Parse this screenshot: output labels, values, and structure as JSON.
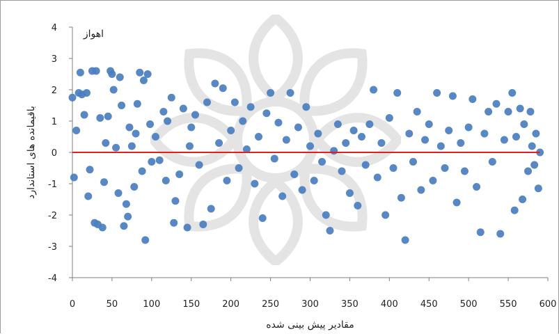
{
  "chart_data": {
    "type": "scatter",
    "title": "",
    "panel_label": "اهواز",
    "xlabel": "مقادیر پیش بینی شده",
    "ylabel": "باقیمانده های استاندارد",
    "xlim": [
      0,
      600
    ],
    "ylim": [
      -4,
      4
    ],
    "x_ticks": [
      "0",
      "50",
      "100",
      "150",
      "200",
      "250",
      "300",
      "350",
      "400",
      "450",
      "500",
      "550",
      "600"
    ],
    "y_ticks": [
      "4",
      "3",
      "2",
      "1",
      "0",
      "-1",
      "-2",
      "-3",
      "-4"
    ],
    "grid": false,
    "legend": "none",
    "reference_line": {
      "y": 0,
      "color": "#e02020"
    },
    "point_color": "#4a7ebf",
    "series": [
      {
        "points": [
          [
            0,
            1.75
          ],
          [
            2,
            -0.8
          ],
          [
            5,
            0.7
          ],
          [
            8,
            1.9
          ],
          [
            10,
            2.55
          ],
          [
            12,
            1.85
          ],
          [
            15,
            1.2
          ],
          [
            18,
            1.9
          ],
          [
            20,
            -1.4
          ],
          [
            22,
            -0.55
          ],
          [
            25,
            2.6
          ],
          [
            28,
            -2.25
          ],
          [
            30,
            2.6
          ],
          [
            32,
            -2.3
          ],
          [
            35,
            1.1
          ],
          [
            38,
            -2.4
          ],
          [
            40,
            -0.95
          ],
          [
            42,
            0.3
          ],
          [
            45,
            1.15
          ],
          [
            48,
            2.6
          ],
          [
            50,
            2.5
          ],
          [
            52,
            2.0
          ],
          [
            55,
            0.15
          ],
          [
            58,
            -1.3
          ],
          [
            60,
            2.4
          ],
          [
            62,
            1.5
          ],
          [
            65,
            -2.35
          ],
          [
            68,
            -1.65
          ],
          [
            70,
            -2.05
          ],
          [
            72,
            0.8
          ],
          [
            75,
            0.2
          ],
          [
            78,
            -1.1
          ],
          [
            80,
            0.6
          ],
          [
            82,
            1.55
          ],
          [
            85,
            2.55
          ],
          [
            88,
            -0.6
          ],
          [
            90,
            2.3
          ],
          [
            92,
            -2.8
          ],
          [
            95,
            2.5
          ],
          [
            98,
            0.9
          ],
          [
            100,
            -0.3
          ],
          [
            105,
            0.5
          ],
          [
            110,
            -0.25
          ],
          [
            115,
            1.3
          ],
          [
            118,
            -0.9
          ],
          [
            120,
            1.0
          ],
          [
            125,
            1.75
          ],
          [
            128,
            -2.25
          ],
          [
            130,
            -1.55
          ],
          [
            135,
            -0.7
          ],
          [
            140,
            1.4
          ],
          [
            145,
            -2.4
          ],
          [
            148,
            0.2
          ],
          [
            150,
            0.8
          ],
          [
            155,
            1.2
          ],
          [
            160,
            -0.4
          ],
          [
            165,
            -2.3
          ],
          [
            170,
            1.6
          ],
          [
            175,
            -1.8
          ],
          [
            180,
            2.2
          ],
          [
            185,
            0.3
          ],
          [
            190,
            2.05
          ],
          [
            195,
            -0.9
          ],
          [
            200,
            0.7
          ],
          [
            205,
            1.6
          ],
          [
            210,
            -0.5
          ],
          [
            215,
            1.0
          ],
          [
            220,
            0.1
          ],
          [
            225,
            1.45
          ],
          [
            230,
            -1.0
          ],
          [
            235,
            0.5
          ],
          [
            240,
            -2.1
          ],
          [
            245,
            1.25
          ],
          [
            250,
            1.9
          ],
          [
            255,
            -0.2
          ],
          [
            260,
            0.95
          ],
          [
            265,
            -1.4
          ],
          [
            270,
            0.4
          ],
          [
            275,
            1.9
          ],
          [
            280,
            -0.7
          ],
          [
            285,
            0.8
          ],
          [
            290,
            -1.2
          ],
          [
            295,
            1.45
          ],
          [
            300,
            0.2
          ],
          [
            305,
            -0.9
          ],
          [
            310,
            0.6
          ],
          [
            315,
            -0.3
          ],
          [
            320,
            -2.0
          ],
          [
            325,
            -2.5
          ],
          [
            330,
            0.05
          ],
          [
            335,
            0.9
          ],
          [
            340,
            -0.6
          ],
          [
            345,
            0.3
          ],
          [
            350,
            -1.3
          ],
          [
            355,
            0.7
          ],
          [
            360,
            -1.7
          ],
          [
            365,
            0.5
          ],
          [
            370,
            -0.4
          ],
          [
            375,
            0.9
          ],
          [
            380,
            2.0
          ],
          [
            385,
            -0.8
          ],
          [
            390,
            0.3
          ],
          [
            395,
            -2.0
          ],
          [
            400,
            1.1
          ],
          [
            405,
            -0.5
          ],
          [
            410,
            1.9
          ],
          [
            415,
            -1.45
          ],
          [
            420,
            -2.8
          ],
          [
            425,
            0.6
          ],
          [
            430,
            -0.3
          ],
          [
            435,
            1.3
          ],
          [
            440,
            -1.2
          ],
          [
            445,
            0.4
          ],
          [
            450,
            0.9
          ],
          [
            455,
            -0.9
          ],
          [
            460,
            1.9
          ],
          [
            465,
            0.2
          ],
          [
            470,
            -0.5
          ],
          [
            475,
            0.7
          ],
          [
            480,
            1.8
          ],
          [
            485,
            -1.6
          ],
          [
            490,
            0.3
          ],
          [
            495,
            -0.6
          ],
          [
            500,
            0.8
          ],
          [
            505,
            1.7
          ],
          [
            510,
            -1.1
          ],
          [
            515,
            -2.55
          ],
          [
            520,
            0.6
          ],
          [
            525,
            1.3
          ],
          [
            530,
            -0.3
          ],
          [
            535,
            1.55
          ],
          [
            540,
            -2.6
          ],
          [
            545,
            0.4
          ],
          [
            550,
            1.3
          ],
          [
            555,
            1.9
          ],
          [
            558,
            -1.85
          ],
          [
            560,
            0.5
          ],
          [
            565,
            1.4
          ],
          [
            568,
            -1.5
          ],
          [
            570,
            0.9
          ],
          [
            575,
            -0.6
          ],
          [
            578,
            1.3
          ],
          [
            580,
            0.2
          ],
          [
            583,
            -0.4
          ],
          [
            585,
            0.6
          ],
          [
            588,
            -1.15
          ],
          [
            590,
            0.0
          ]
        ]
      }
    ]
  }
}
